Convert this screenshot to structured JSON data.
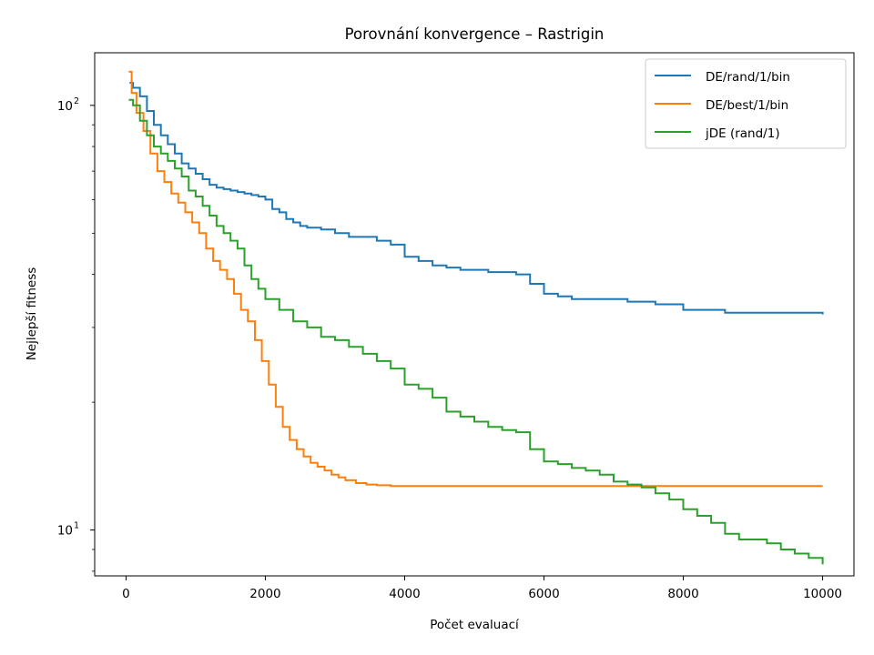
{
  "chart_data": {
    "type": "line",
    "title": "Porovnání konvergence – Rastrigin",
    "xlabel": "Počet evaluací",
    "ylabel": "Nejlepší fitness",
    "x_ticks": [
      0,
      2000,
      4000,
      6000,
      8000,
      10000
    ],
    "x_tick_labels": [
      "0",
      "2000",
      "4000",
      "6000",
      "8000",
      "10000"
    ],
    "y_ticks": [
      10,
      100
    ],
    "y_tick_labels": [
      {
        "base": "10",
        "exp": "1"
      },
      {
        "base": "10",
        "exp": "2"
      }
    ],
    "yscale": "log",
    "xlim": [
      -450,
      10450
    ],
    "ylim": [
      7.8,
      133
    ],
    "grid": false,
    "legend_position": "top-right",
    "series": [
      {
        "name": "DE/rand/1/bin",
        "color": "#1f77b4",
        "x": [
          50,
          100,
          200,
          300,
          400,
          500,
          600,
          700,
          800,
          900,
          1000,
          1100,
          1200,
          1300,
          1400,
          1500,
          1600,
          1700,
          1800,
          1900,
          2000,
          2100,
          2200,
          2300,
          2400,
          2500,
          2600,
          2800,
          3000,
          3200,
          3400,
          3600,
          3800,
          4000,
          4200,
          4400,
          4600,
          4800,
          5000,
          5200,
          5400,
          5600,
          5800,
          6000,
          6200,
          6400,
          6600,
          6800,
          7000,
          7200,
          7400,
          7600,
          7800,
          8000,
          8200,
          8400,
          8600,
          8800,
          9000,
          9200,
          9400,
          9600,
          9800,
          10000
        ],
        "y": [
          113,
          110,
          105,
          97,
          90,
          85,
          81,
          77,
          73,
          71,
          69,
          67,
          65,
          64,
          63.5,
          63,
          62.5,
          62,
          61.5,
          61,
          60,
          57,
          56,
          54,
          53,
          52,
          51.5,
          51,
          50,
          49,
          49,
          48,
          47,
          44,
          43,
          42,
          41.5,
          41,
          41,
          40.5,
          40.5,
          40,
          38,
          36,
          35.5,
          35,
          35,
          35,
          35,
          34.5,
          34.5,
          34,
          34,
          33,
          33,
          33,
          32.5,
          32.5,
          32.5,
          32.5,
          32.5,
          32.5,
          32.5,
          32.2
        ]
      },
      {
        "name": "DE/best/1/bin",
        "color": "#ff7f0e",
        "x": [
          40,
          80,
          150,
          250,
          350,
          450,
          550,
          650,
          750,
          850,
          950,
          1050,
          1150,
          1250,
          1350,
          1450,
          1550,
          1650,
          1750,
          1850,
          1950,
          2050,
          2150,
          2250,
          2350,
          2450,
          2550,
          2650,
          2750,
          2850,
          2950,
          3050,
          3150,
          3300,
          3450,
          3600,
          3800,
          4000,
          5000,
          6000,
          7000,
          8000,
          9000,
          10000
        ],
        "y": [
          120,
          107,
          96,
          87,
          77,
          70,
          66,
          62,
          59,
          56,
          53,
          50,
          46,
          43,
          41,
          39,
          36,
          33,
          31,
          28,
          25,
          22,
          19.5,
          17.5,
          16.3,
          15.5,
          14.9,
          14.4,
          14.1,
          13.8,
          13.5,
          13.3,
          13.1,
          12.9,
          12.8,
          12.75,
          12.7,
          12.7,
          12.7,
          12.7,
          12.7,
          12.7,
          12.7,
          12.7
        ]
      },
      {
        "name": "jDE (rand/1)",
        "color": "#2ca02c",
        "x": [
          40,
          100,
          200,
          300,
          400,
          500,
          600,
          700,
          800,
          900,
          1000,
          1100,
          1200,
          1300,
          1400,
          1500,
          1600,
          1700,
          1800,
          1900,
          2000,
          2200,
          2400,
          2600,
          2800,
          3000,
          3200,
          3400,
          3600,
          3800,
          4000,
          4200,
          4400,
          4600,
          4800,
          5000,
          5200,
          5400,
          5600,
          5800,
          6000,
          6200,
          6400,
          6600,
          6800,
          7000,
          7200,
          7400,
          7600,
          7800,
          8000,
          8200,
          8400,
          8600,
          8800,
          9000,
          9200,
          9400,
          9600,
          9800,
          10000
        ],
        "y": [
          103,
          100,
          92,
          85,
          80,
          77,
          74,
          71,
          68,
          63,
          61,
          58,
          55,
          52,
          50,
          48,
          46,
          42,
          39,
          37,
          35,
          33,
          31,
          30,
          28.5,
          28,
          27,
          26,
          25,
          24,
          22,
          21.5,
          20.5,
          19,
          18.5,
          18,
          17.5,
          17.2,
          17,
          15.5,
          14.5,
          14.3,
          14,
          13.8,
          13.5,
          13,
          12.8,
          12.6,
          12.2,
          11.8,
          11.2,
          10.8,
          10.4,
          9.8,
          9.5,
          9.5,
          9.3,
          9,
          8.8,
          8.6,
          8.3
        ]
      }
    ]
  }
}
